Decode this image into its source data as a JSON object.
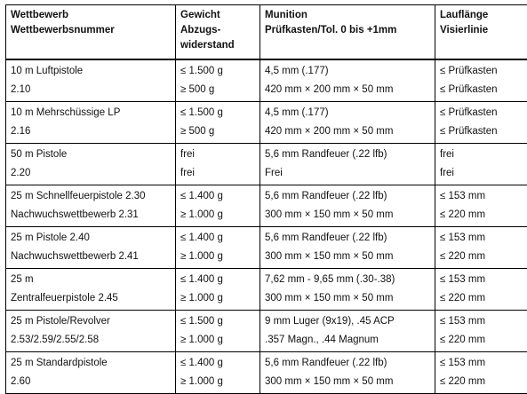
{
  "headers": [
    [
      "Wettbewerb",
      "Wettbewerbsnummer"
    ],
    [
      "Gewicht",
      "Abzugs-",
      "widerstand"
    ],
    [
      "Munition",
      "Prüfkasten/Tol. 0 bis +1mm"
    ],
    [
      "Lauflänge",
      "Visierlinie"
    ]
  ],
  "rows": [
    {
      "wettbewerb": [
        "10 m Luftpistole",
        "2.10"
      ],
      "gewicht": [
        "≤ 1.500 g",
        "≥ 500 g"
      ],
      "munition": [
        "4,5 mm (.177)",
        "420 mm × 200 mm × 50 mm"
      ],
      "lauflaenge": [
        "≤ Prüfkasten",
        "≤ Prüfkasten"
      ]
    },
    {
      "wettbewerb": [
        "10 m Mehrschüssige LP",
        "2.16"
      ],
      "gewicht": [
        "≤ 1.500 g",
        "≥ 500 g"
      ],
      "munition": [
        "4,5 mm (.177)",
        "420 mm × 200 mm × 50 mm"
      ],
      "lauflaenge": [
        "≤ Prüfkasten",
        "≤ Prüfkasten"
      ]
    },
    {
      "wettbewerb": [
        "50 m Pistole",
        "2.20"
      ],
      "gewicht": [
        "frei",
        "frei"
      ],
      "munition": [
        "5,6 mm Randfeuer (.22 lfb)",
        "Frei"
      ],
      "lauflaenge": [
        "frei",
        "frei"
      ]
    },
    {
      "wettbewerb": [
        "25 m Schnellfeuerpistole 2.30",
        "Nachwuchswettbewerb 2.31"
      ],
      "gewicht": [
        "≤ 1.400 g",
        "≥ 1.000 g"
      ],
      "munition": [
        "5,6 mm Randfeuer (.22 lfb)",
        "300 mm × 150 mm × 50 mm"
      ],
      "lauflaenge": [
        "≤ 153 mm",
        "≤ 220 mm"
      ]
    },
    {
      "wettbewerb": [
        "25 m Pistole 2.40",
        "Nachwuchswettbewerb 2.41"
      ],
      "gewicht": [
        "≤ 1.400 g",
        "≥ 1.000 g"
      ],
      "munition": [
        "5,6 mm Randfeuer (.22 lfb)",
        "300 mm × 150 mm × 50 mm"
      ],
      "lauflaenge": [
        "≤ 153 mm",
        "≤ 220 mm"
      ]
    },
    {
      "wettbewerb": [
        "25 m",
        "Zentralfeuerpistole 2.45"
      ],
      "gewicht": [
        "≤ 1.400 g",
        "≥ 1.000 g"
      ],
      "munition": [
        "7,62 mm - 9,65 mm (.30-.38)",
        "300 mm × 150 mm × 50 mm"
      ],
      "lauflaenge": [
        "≤ 153 mm",
        "≤ 220 mm"
      ]
    },
    {
      "wettbewerb": [
        "25 m Pistole/Revolver",
        "2.53/2.59/2.55/2.58"
      ],
      "gewicht": [
        "≤ 1.500 g",
        "≥ 1.000 g"
      ],
      "munition": [
        "9 mm Luger (9x19), .45 ACP",
        ".357 Magn., .44 Magnum"
      ],
      "lauflaenge": [
        "≤ 153 mm",
        "≤ 220 mm"
      ]
    },
    {
      "wettbewerb": [
        "25 m Standardpistole",
        "2.60"
      ],
      "gewicht": [
        "≤ 1.400 g",
        "≥ 1.000 g"
      ],
      "munition": [
        "5,6 mm Randfeuer (.22 lfb)",
        "300 mm × 150 mm × 50 mm"
      ],
      "lauflaenge": [
        "≤ 153 mm",
        "≤ 220 mm"
      ]
    }
  ]
}
